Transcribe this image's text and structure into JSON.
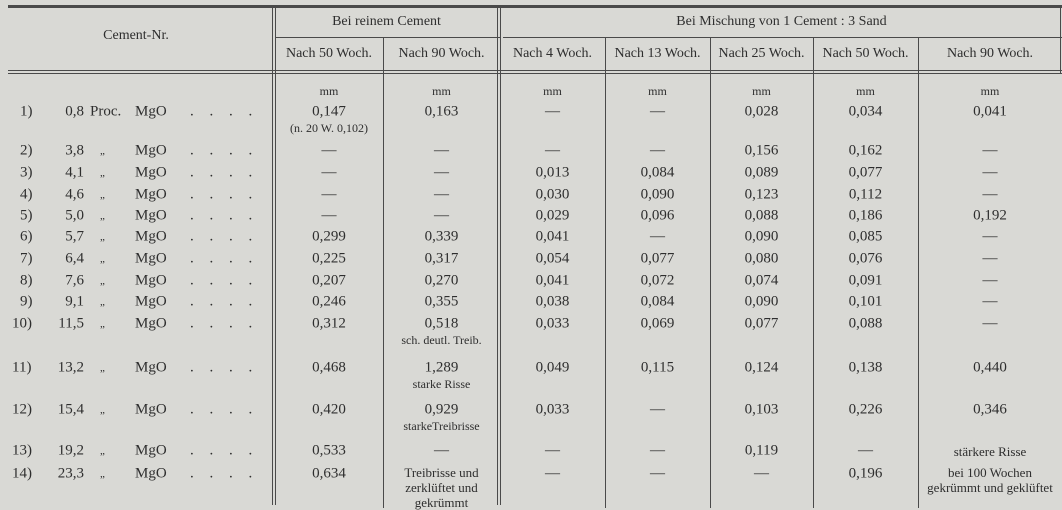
{
  "header": {
    "cement_nr": "Cement-Nr.",
    "pure_group": "Bei reinem Cement",
    "mix_group": "Bei Mischung von 1 Cement : 3 Sand",
    "pure_cols": [
      "Nach 50 Woch.",
      "Nach 90 Woch."
    ],
    "mix_cols": [
      "Nach 4 Woch.",
      "Nach 13 Woch.",
      "Nach 25 Woch.",
      "Nach 50 Woch.",
      "Nach 90 Woch."
    ],
    "unit": "mm"
  },
  "rows": [
    {
      "nr": "1)",
      "pct": "0,8",
      "proc": "Proc.",
      "mgo": "MgO",
      "dots": ". . . .",
      "pure": [
        "0,147",
        "0,163"
      ],
      "mix": [
        "—",
        "—",
        "0,028",
        "0,034",
        "0,041"
      ],
      "notes": {
        "pure0": "(n. 20 W. 0,102)"
      }
    },
    {
      "nr": "2)",
      "pct": "3,8",
      "proc": "„",
      "mgo": "MgO",
      "dots": ". . . .",
      "pure": [
        "—",
        "—"
      ],
      "mix": [
        "—",
        "—",
        "0,156",
        "0,162",
        "—"
      ],
      "notes": {}
    },
    {
      "nr": "3)",
      "pct": "4,1",
      "proc": "„",
      "mgo": "MgO",
      "dots": ". . . .",
      "pure": [
        "—",
        "—"
      ],
      "mix": [
        "0,013",
        "0,084",
        "0,089",
        "0,077",
        "—"
      ],
      "notes": {}
    },
    {
      "nr": "4)",
      "pct": "4,6",
      "proc": "„",
      "mgo": "MgO",
      "dots": ". . . .",
      "pure": [
        "—",
        "—"
      ],
      "mix": [
        "0,030",
        "0,090",
        "0,123",
        "0,112",
        "—"
      ],
      "notes": {}
    },
    {
      "nr": "5)",
      "pct": "5,0",
      "proc": "„",
      "mgo": "MgO",
      "dots": ". . . .",
      "pure": [
        "—",
        "—"
      ],
      "mix": [
        "0,029",
        "0,096",
        "0,088",
        "0,186",
        "0,192"
      ],
      "notes": {}
    },
    {
      "nr": "6)",
      "pct": "5,7",
      "proc": "„",
      "mgo": "MgO",
      "dots": ". . . .",
      "pure": [
        "0,299",
        "0,339"
      ],
      "mix": [
        "0,041",
        "—",
        "0,090",
        "0,085",
        "—"
      ],
      "notes": {}
    },
    {
      "nr": "7)",
      "pct": "6,4",
      "proc": "„",
      "mgo": "MgO",
      "dots": ". . . .",
      "pure": [
        "0,225",
        "0,317"
      ],
      "mix": [
        "0,054",
        "0,077",
        "0,080",
        "0,076",
        "—"
      ],
      "notes": {}
    },
    {
      "nr": "8)",
      "pct": "7,6",
      "proc": "„",
      "mgo": "MgO",
      "dots": ". . . .",
      "pure": [
        "0,207",
        "0,270"
      ],
      "mix": [
        "0,041",
        "0,072",
        "0,074",
        "0,091",
        "—"
      ],
      "notes": {}
    },
    {
      "nr": "9)",
      "pct": "9,1",
      "proc": "„",
      "mgo": "MgO",
      "dots": ". . . .",
      "pure": [
        "0,246",
        "0,355"
      ],
      "mix": [
        "0,038",
        "0,084",
        "0,090",
        "0,101",
        "—"
      ],
      "notes": {}
    },
    {
      "nr": "10)",
      "pct": "11,5",
      "proc": "„",
      "mgo": "MgO",
      "dots": ". . . .",
      "pure": [
        "0,312",
        "0,518"
      ],
      "mix": [
        "0,033",
        "0,069",
        "0,077",
        "0,088",
        "—"
      ],
      "notes": {
        "pure1": "sch. deutl. Treib."
      }
    },
    {
      "nr": "11)",
      "pct": "13,2",
      "proc": "„",
      "mgo": "MgO",
      "dots": ". . . .",
      "pure": [
        "0,468",
        "1,289"
      ],
      "mix": [
        "0,049",
        "0,115",
        "0,124",
        "0,138",
        "0,440"
      ],
      "notes": {
        "pure1": "starke Risse"
      }
    },
    {
      "nr": "12)",
      "pct": "15,4",
      "proc": "„",
      "mgo": "MgO",
      "dots": ". . . .",
      "pure": [
        "0,420",
        "0,929"
      ],
      "mix": [
        "0,033",
        "—",
        "0,103",
        "0,226",
        "0,346"
      ],
      "notes": {
        "pure1": "starkeTreibrisse"
      }
    },
    {
      "nr": "13)",
      "pct": "19,2",
      "proc": "„",
      "mgo": "MgO",
      "dots": ". . . .",
      "pure": [
        "0,533",
        "—"
      ],
      "mix": [
        "—",
        "—",
        "0,119",
        "—",
        ""
      ],
      "notes": {
        "mix4": "stärkere Risse"
      }
    },
    {
      "nr": "14)",
      "pct": "23,3",
      "proc": "„",
      "mgo": "MgO",
      "dots": ". . . .",
      "pure": [
        "0,634",
        ""
      ],
      "mix": [
        "—",
        "—",
        "—",
        "0,196",
        ""
      ],
      "notes": {
        "pure1": "Treibrisse und zerklüftet und gekrümmt",
        "mix4": "bei 100 Wochen gekrümmt und geklüftet"
      }
    }
  ]
}
